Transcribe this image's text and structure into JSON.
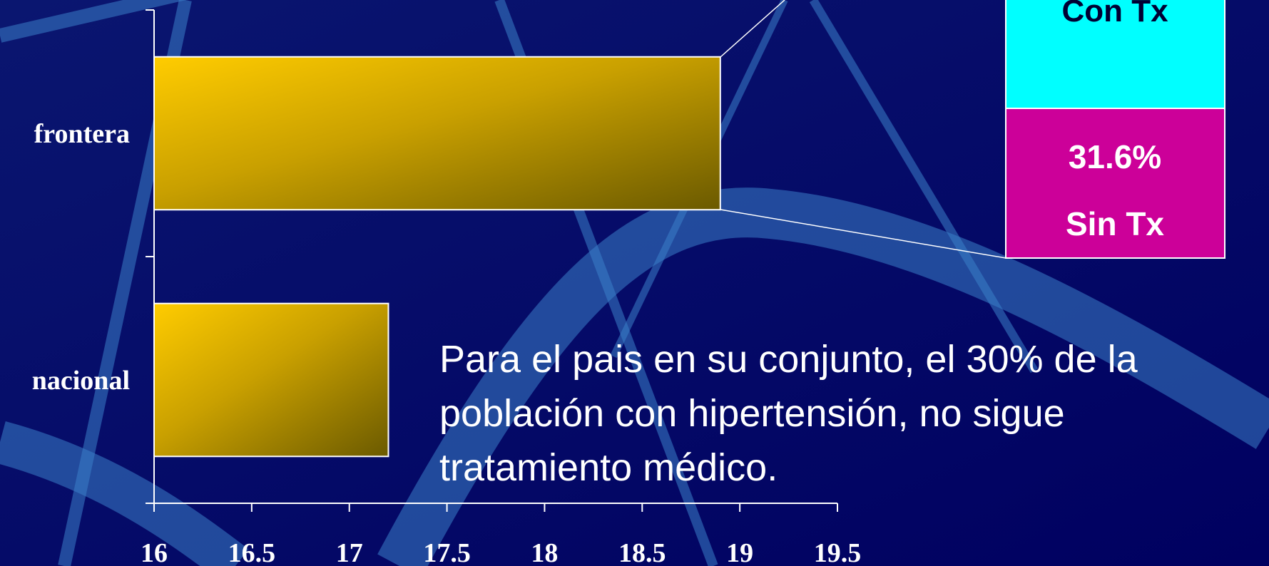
{
  "chart_data": {
    "type": "bar",
    "orientation": "horizontal",
    "categories": [
      "frontera",
      "nacional"
    ],
    "values": [
      18.9,
      17.2
    ],
    "color": "#ffcc00",
    "xlim": [
      16,
      19.5
    ],
    "xticks": [
      16,
      16.5,
      17,
      17.5,
      18,
      18.5,
      19,
      19.5
    ],
    "annotation": "Para el pais en su conjunto, el 30% de la población con hipertensión, no sigue tratamiento médico.",
    "inset": {
      "series": [
        {
          "name": "Con Tx",
          "color": "#00ffff"
        },
        {
          "name": "Sin Tx",
          "color": "#cc0099",
          "values": [
            31.6
          ],
          "value_labels": [
            "31.6%"
          ]
        }
      ]
    }
  }
}
